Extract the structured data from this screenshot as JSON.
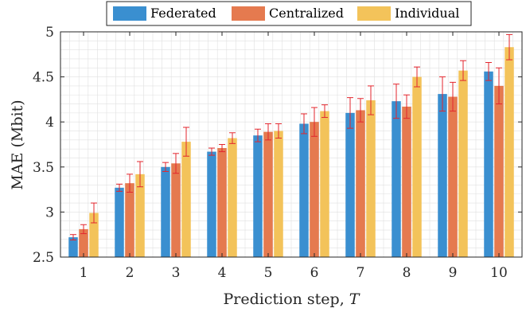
{
  "chart_data": {
    "type": "bar",
    "title": "",
    "xlabel": "Prediction step, ",
    "xlabel_var": "T",
    "ylabel": "MAE (Mbit)",
    "ylim": [
      2.5,
      5
    ],
    "y_ticks": [
      2.5,
      3,
      3.5,
      4,
      4.5,
      5
    ],
    "y_tick_labels": [
      "2.5",
      "3",
      "3.5",
      "4",
      "4.5",
      "5"
    ],
    "categories": [
      "1",
      "2",
      "3",
      "4",
      "5",
      "6",
      "7",
      "8",
      "9",
      "10"
    ],
    "grid": true,
    "legend_position": "top-center",
    "series": [
      {
        "name": "Federated",
        "color": "#3a8fd0",
        "values": [
          2.72,
          3.27,
          3.5,
          3.67,
          3.85,
          3.98,
          4.1,
          4.23,
          4.31,
          4.56
        ],
        "err": [
          0.03,
          0.04,
          0.05,
          0.04,
          0.07,
          0.11,
          0.17,
          0.19,
          0.19,
          0.1
        ]
      },
      {
        "name": "Centralized",
        "color": "#e57a4f",
        "values": [
          2.81,
          3.32,
          3.54,
          3.71,
          3.89,
          4.0,
          4.13,
          4.17,
          4.28,
          4.4
        ],
        "err": [
          0.05,
          0.1,
          0.11,
          0.04,
          0.09,
          0.16,
          0.13,
          0.13,
          0.16,
          0.2
        ]
      },
      {
        "name": "Individual",
        "color": "#f3c35a",
        "values": [
          2.99,
          3.42,
          3.78,
          3.82,
          3.9,
          4.12,
          4.24,
          4.5,
          4.57,
          4.83
        ],
        "err": [
          0.11,
          0.14,
          0.16,
          0.06,
          0.08,
          0.07,
          0.16,
          0.11,
          0.11,
          0.14
        ]
      }
    ]
  },
  "colors": {
    "error_bar": "#e3262e",
    "grid": "#e0e0e0",
    "axis": "#262626"
  }
}
